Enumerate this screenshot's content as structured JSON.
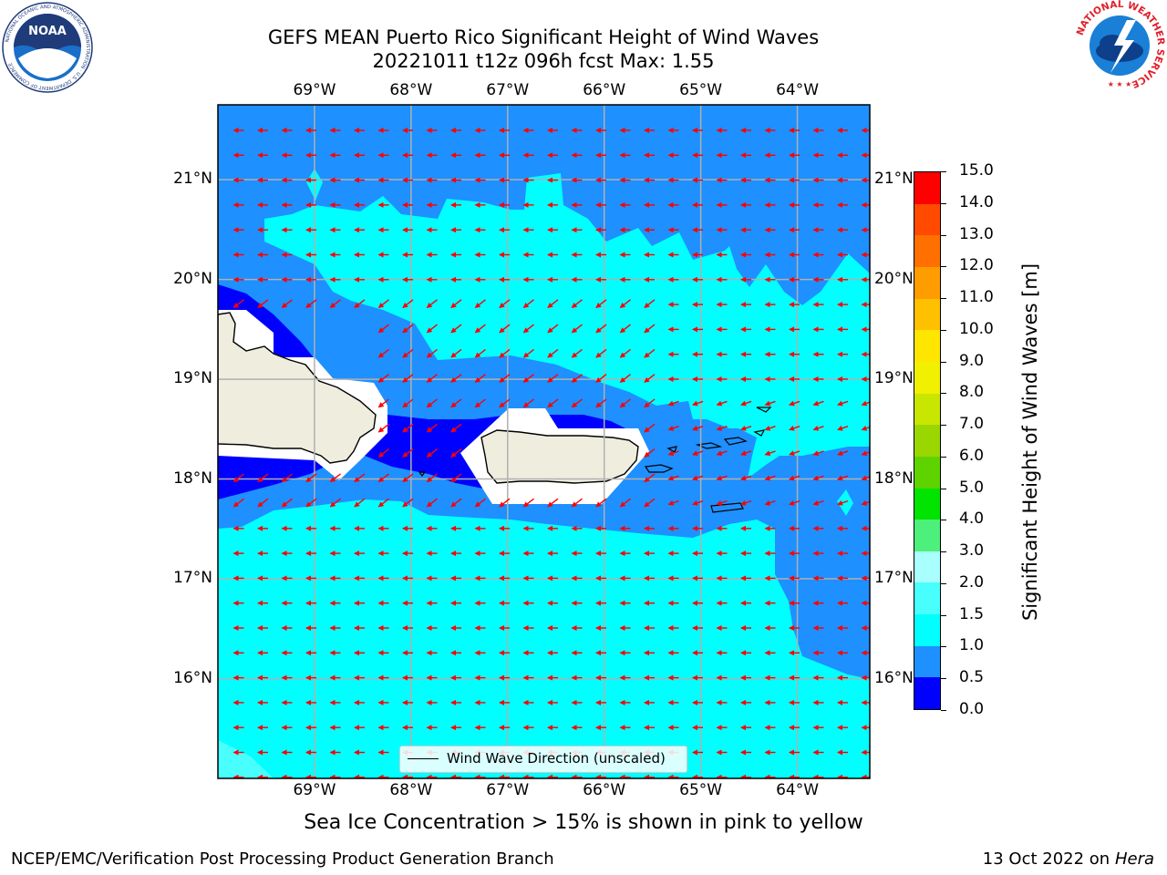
{
  "title": {
    "line1": "GEFS MEAN Puerto Rico Significant Height of Wind Waves",
    "line2": "20221011 t12z 096h fcst   Max: 1.55"
  },
  "caption": "Sea Ice Concentration > 15% is shown in pink to yellow",
  "footer": {
    "left": "NCEP/EMC/Verification Post Processing Product Generation Branch",
    "right_prefix": "13 Oct 2022 on ",
    "right_machine": "Hera"
  },
  "logos": {
    "noaa": {
      "name": "NOAA",
      "ring_text": "NATIONAL OCEANIC AND ATMOSPHERIC ADMINISTRATION · U.S. DEPARTMENT OF COMMERCE"
    },
    "nws": {
      "ring_text": "NATIONAL WEATHER SERVICE"
    }
  },
  "map": {
    "lon_labels": [
      "69°W",
      "68°W",
      "67°W",
      "66°W",
      "65°W",
      "64°W"
    ],
    "lat_labels": [
      "21°N",
      "20°N",
      "19°N",
      "18°N",
      "17°N",
      "16°N"
    ],
    "lon_range": [
      -70.0,
      -63.25
    ],
    "lat_range": [
      15.0,
      21.75
    ],
    "legend_label": "Wind Wave Direction (unscaled)",
    "arrow_color": "#ff0000",
    "land_color": "#efedde",
    "dominant_direction": "toward west (easterly trade-wind waves)"
  },
  "colorbar": {
    "title": "Significant Height of Wind Waves [m]",
    "ticks": [
      "0.0",
      "0.5",
      "1.0",
      "1.5",
      "2.0",
      "3.0",
      "4.0",
      "5.0",
      "6.0",
      "7.0",
      "8.0",
      "9.0",
      "10.0",
      "11.0",
      "12.0",
      "13.0",
      "14.0",
      "15.0"
    ],
    "colors": [
      "#0000ff",
      "#1e90ff",
      "#00ffff",
      "#48fffe",
      "#a8fffe",
      "#4cf07a",
      "#00e400",
      "#5fd300",
      "#9ad700",
      "#c8e600",
      "#f0f000",
      "#ffe600",
      "#ffc000",
      "#ff9c00",
      "#ff7000",
      "#ff4a00",
      "#ff0000"
    ]
  },
  "chart_data": {
    "type": "heatmap",
    "title": "GEFS MEAN Puerto Rico Significant Height of Wind Waves",
    "subtitle": "20221011 t12z 096h fcst   Max: 1.55",
    "variable": "Significant Height of Wind Waves [m]",
    "max_value": 1.55,
    "xlim": [
      -70.0,
      -63.25
    ],
    "ylim": [
      15.0,
      21.75
    ],
    "levels": [
      0.0,
      0.5,
      1.0,
      1.5,
      2.0,
      3.0,
      4.0,
      5.0,
      6.0,
      7.0,
      8.0,
      9.0,
      10.0,
      11.0,
      12.0,
      13.0,
      14.0,
      15.0
    ],
    "regions": [
      {
        "band": "0.0-0.5",
        "area": "sheltered waters near Hispaniola coast and north of Puerto Rico"
      },
      {
        "band": "0.5-1.0",
        "area": "northern open Atlantic, Mona Passage surroundings, Caribbean east of 64.5°W"
      },
      {
        "band": "1.0-1.5",
        "area": "band north of Hispaniola/Puerto Rico (19-20.5°N) and Caribbean south of 17.7°N"
      },
      {
        "band": "1.5-2.0",
        "area": "southwest corner near 15°N 70°W"
      }
    ],
    "vector_field": "Wind Wave Direction (unscaled)"
  }
}
